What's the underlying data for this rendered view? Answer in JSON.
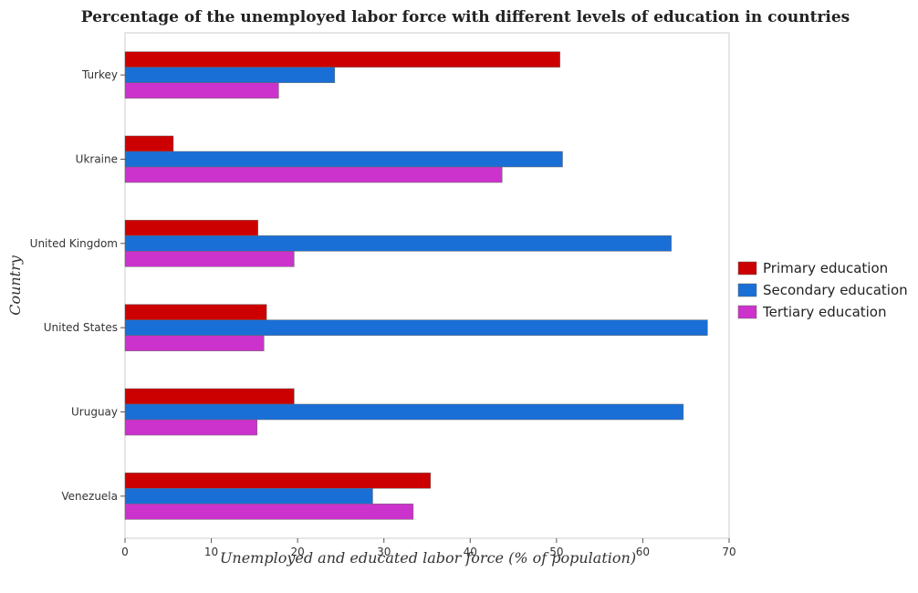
{
  "chart_data": {
    "type": "bar",
    "orientation": "horizontal",
    "title": "Percentage of the unemployed labor force with different levels of education in countries",
    "xlabel": "Unemployed and educated labor force (% of population)",
    "ylabel": "Country",
    "xlim": [
      0,
      70
    ],
    "xticks": [
      0,
      10,
      20,
      30,
      40,
      50,
      60,
      70
    ],
    "grid": false,
    "legend_position": "right",
    "categories": [
      "Turkey",
      "Ukraine",
      "United Kingdom",
      "United States",
      "Uruguay",
      "Venezuela"
    ],
    "series": [
      {
        "name": "Primary education",
        "color": "#cc0000",
        "values": [
          50.4,
          5.6,
          15.4,
          16.4,
          19.6,
          35.4
        ]
      },
      {
        "name": "Secondary education",
        "color": "#1a6fd6",
        "values": [
          24.3,
          50.7,
          63.3,
          67.5,
          64.7,
          28.7
        ]
      },
      {
        "name": "Tertiary education",
        "color": "#cc33cc",
        "values": [
          17.8,
          43.7,
          19.6,
          16.1,
          15.3,
          33.4
        ]
      }
    ]
  }
}
